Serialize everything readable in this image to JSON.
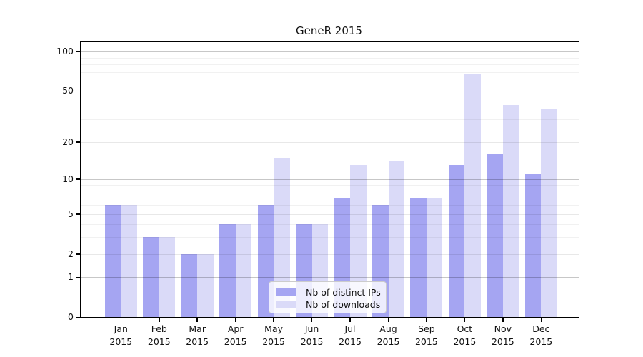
{
  "title": "GeneR 2015",
  "chart_data": {
    "type": "bar",
    "title": "GeneR 2015",
    "categories": [
      "Jan",
      "Feb",
      "Mar",
      "Apr",
      "May",
      "Jun",
      "Jul",
      "Aug",
      "Sep",
      "Oct",
      "Nov",
      "Dec"
    ],
    "year": "2015",
    "series": [
      {
        "name": "Nb of distinct IPs",
        "color": "#a5a5f2",
        "values": [
          6,
          3,
          2,
          4,
          6,
          4,
          7,
          6,
          7,
          13,
          16,
          11
        ]
      },
      {
        "name": "Nb of downloads",
        "color": "#dadaf8",
        "values": [
          6,
          3,
          2,
          4,
          15,
          4,
          13,
          14,
          7,
          68,
          39,
          36
        ]
      }
    ],
    "yscale": "log1p",
    "ymax": 118,
    "yticks_major": [
      0,
      1,
      2,
      5,
      10,
      20,
      50,
      100
    ],
    "yticks_emphasized": [
      1,
      10,
      100
    ],
    "yticks_minor": [
      3,
      4,
      6,
      7,
      8,
      9,
      30,
      40,
      60,
      70,
      80,
      90
    ],
    "grid": true,
    "legend_position": "lower-center-inside",
    "axis_color": "#000000",
    "background_color": "#ffffff"
  }
}
